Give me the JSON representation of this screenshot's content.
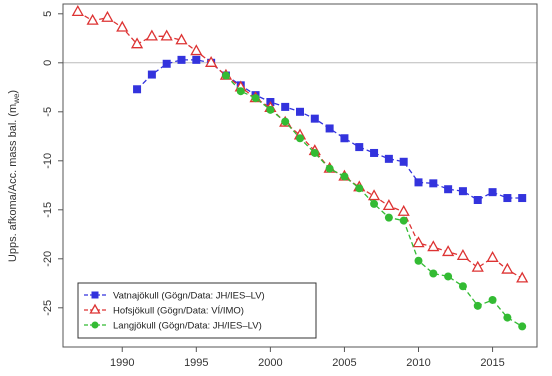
{
  "chart_data": {
    "type": "line",
    "title": "",
    "xlabel": "",
    "ylabel": "Upps. afkoma/Acc. mass bal. (m",
    "ylabel_subscript": "we",
    "ylabel_close": ")",
    "xlim": [
      1986,
      2018
    ],
    "ylim": [
      -29,
      6
    ],
    "xticks": [
      1990,
      1995,
      2000,
      2005,
      2010,
      2015
    ],
    "yticks": [
      5,
      0,
      -5,
      -10,
      -15,
      -20,
      -25
    ],
    "reference_line_y": 0,
    "grid": false,
    "legend_position": "bottom-left",
    "series": [
      {
        "name": "Vatnajökull (Gögn/Data: JH/IES–LV)",
        "color": "#3333dd",
        "marker": "square",
        "line": "dashed",
        "x": [
          1991,
          1992,
          1993,
          1994,
          1995,
          1996,
          1997,
          1998,
          1999,
          2000,
          2001,
          2002,
          2003,
          2004,
          2005,
          2006,
          2007,
          2008,
          2009,
          2010,
          2011,
          2012,
          2013,
          2014,
          2015,
          2016,
          2017
        ],
        "y": [
          -2.7,
          -1.2,
          -0.1,
          0.3,
          0.3,
          0.0,
          -1.3,
          -2.3,
          -3.3,
          -4.0,
          -4.5,
          -5.0,
          -5.7,
          -6.7,
          -7.7,
          -8.6,
          -9.2,
          -9.8,
          -10.1,
          -12.2,
          -12.3,
          -12.9,
          -13.1,
          -14.0,
          -13.2,
          -13.8,
          -13.8
        ]
      },
      {
        "name": "Hofsjökull (Gögn/Data: VÍ/IMO)",
        "color": "#dd3333",
        "marker": "triangle",
        "line": "dashed",
        "x": [
          1987,
          1988,
          1989,
          1990,
          1991,
          1992,
          1993,
          1994,
          1995,
          1996,
          1997,
          1998,
          1999,
          2000,
          2001,
          2002,
          2003,
          2004,
          2005,
          2006,
          2007,
          2008,
          2009,
          2010,
          2011,
          2012,
          2013,
          2014,
          2015,
          2016,
          2017
        ],
        "y": [
          5.2,
          4.3,
          4.6,
          3.6,
          1.9,
          2.7,
          2.7,
          2.3,
          1.2,
          0.0,
          -1.3,
          -2.5,
          -3.6,
          -4.6,
          -6.1,
          -7.4,
          -9.0,
          -10.8,
          -11.6,
          -12.7,
          -13.6,
          -14.6,
          -15.2,
          -18.4,
          -18.8,
          -19.3,
          -19.7,
          -20.9,
          -19.9,
          -21.1,
          -22.0
        ]
      },
      {
        "name": "Langjökull (Gögn/Data: JH/IES–LV)",
        "color": "#33bb33",
        "marker": "circle",
        "line": "dashed",
        "x": [
          1997,
          1998,
          1999,
          2000,
          2001,
          2002,
          2003,
          2004,
          2005,
          2006,
          2007,
          2008,
          2009,
          2010,
          2011,
          2012,
          2013,
          2014,
          2015,
          2016,
          2017
        ],
        "y": [
          -1.3,
          -2.9,
          -3.6,
          -4.8,
          -6.0,
          -7.7,
          -9.2,
          -10.8,
          -11.6,
          -12.8,
          -14.4,
          -15.8,
          -16.1,
          -20.2,
          -21.5,
          -21.8,
          -22.8,
          -24.8,
          -24.2,
          -26.0,
          -26.9
        ]
      }
    ]
  }
}
